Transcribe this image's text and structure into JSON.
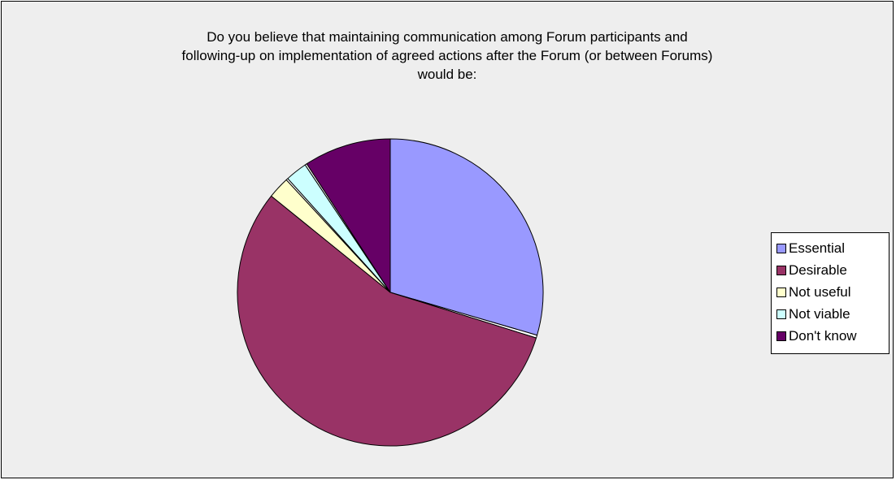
{
  "chart_data": {
    "type": "pie",
    "title_lines": [
      "Do you believe that maintaining communication among Forum participants and",
      "following-up on implementation of agreed actions after the Forum (or between Forums)",
      "would be:"
    ],
    "start_angle_deg": 0,
    "direction": "clockwise",
    "legend_position": "right",
    "slices": [
      {
        "label": "Essential",
        "value": 29.5,
        "color": "#9999ff"
      },
      {
        "label": "",
        "value": 0.3,
        "color": "#ffffff"
      },
      {
        "label": "Desirable",
        "value": 56.0,
        "color": "#993366"
      },
      {
        "label": "Not useful",
        "value": 2.3,
        "color": "#ffffcc"
      },
      {
        "label": "",
        "value": 0.2,
        "color": "#ffffff"
      },
      {
        "label": "Not viable",
        "value": 2.3,
        "color": "#ccffff"
      },
      {
        "label": "",
        "value": 0.2,
        "color": "#ffffff"
      },
      {
        "label": "Don't know",
        "value": 9.2,
        "color": "#660066"
      }
    ]
  }
}
